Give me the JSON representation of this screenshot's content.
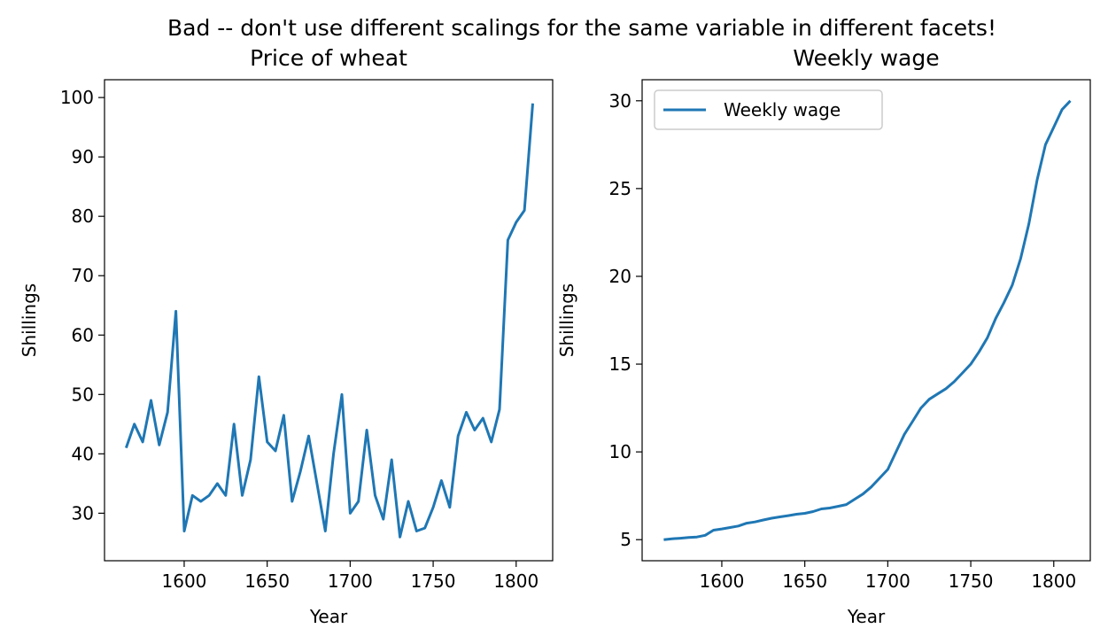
{
  "suptitle": "Bad -- don't use different scalings for the same variable in different facets!",
  "colors": {
    "line": "#1f77b4",
    "axes": "#000000",
    "legend_edge": "#cccccc"
  },
  "chart_data": [
    {
      "type": "line",
      "title": "Price of wheat",
      "xlabel": "Year",
      "ylabel": "Shillings",
      "xlim": [
        1552,
        1822
      ],
      "ylim": [
        22,
        103
      ],
      "xticks": [
        1600,
        1650,
        1700,
        1750,
        1800
      ],
      "yticks": [
        30,
        40,
        50,
        60,
        70,
        80,
        90,
        100
      ],
      "grid": false,
      "legend": null,
      "series": [
        {
          "name": "",
          "x": [
            1565,
            1570,
            1575,
            1580,
            1585,
            1590,
            1595,
            1600,
            1605,
            1610,
            1615,
            1620,
            1625,
            1630,
            1635,
            1640,
            1645,
            1650,
            1655,
            1660,
            1665,
            1670,
            1675,
            1680,
            1685,
            1690,
            1695,
            1700,
            1705,
            1710,
            1715,
            1720,
            1725,
            1730,
            1735,
            1740,
            1745,
            1750,
            1755,
            1760,
            1765,
            1770,
            1775,
            1780,
            1785,
            1790,
            1795,
            1800,
            1805,
            1810
          ],
          "y": [
            41,
            45,
            42,
            49,
            41.5,
            47,
            64,
            27,
            33,
            32,
            33,
            35,
            33,
            45,
            33,
            39,
            53,
            42,
            40.5,
            46.5,
            32,
            37,
            43,
            35,
            27,
            40,
            50,
            30,
            32,
            44,
            33,
            29,
            39,
            26,
            32,
            27,
            27.5,
            31,
            35.5,
            31,
            43,
            47,
            44,
            46,
            42,
            47.5,
            76,
            79,
            81,
            99
          ]
        }
      ]
    },
    {
      "type": "line",
      "title": "Weekly wage",
      "xlabel": "Year",
      "ylabel": "Shillings",
      "xlim": [
        1552,
        1822
      ],
      "ylim": [
        3.8,
        31.2
      ],
      "xticks": [
        1600,
        1650,
        1700,
        1750,
        1800
      ],
      "yticks": [
        5,
        10,
        15,
        20,
        25,
        30
      ],
      "grid": false,
      "legend": "top-left",
      "series": [
        {
          "name": "Weekly wage",
          "x": [
            1565,
            1570,
            1575,
            1580,
            1585,
            1590,
            1595,
            1600,
            1605,
            1610,
            1615,
            1620,
            1625,
            1630,
            1635,
            1640,
            1645,
            1650,
            1655,
            1660,
            1665,
            1670,
            1675,
            1680,
            1685,
            1690,
            1695,
            1700,
            1705,
            1710,
            1715,
            1720,
            1725,
            1730,
            1735,
            1740,
            1745,
            1750,
            1755,
            1760,
            1765,
            1770,
            1775,
            1780,
            1785,
            1790,
            1795,
            1800,
            1805,
            1810
          ],
          "y": [
            5,
            5.05,
            5.08,
            5.12,
            5.15,
            5.25,
            5.54,
            5.61,
            5.69,
            5.78,
            5.94,
            6.01,
            6.12,
            6.22,
            6.3,
            6.37,
            6.45,
            6.5,
            6.6,
            6.75,
            6.8,
            6.9,
            7.0,
            7.3,
            7.6,
            8.0,
            8.5,
            9.0,
            10.0,
            11.0,
            11.75,
            12.5,
            13.0,
            13.3,
            13.6,
            14.0,
            14.5,
            15.0,
            15.7,
            16.5,
            17.6,
            18.5,
            19.5,
            21.0,
            23.0,
            25.5,
            27.5,
            28.5,
            29.5,
            30.0
          ]
        }
      ]
    }
  ]
}
